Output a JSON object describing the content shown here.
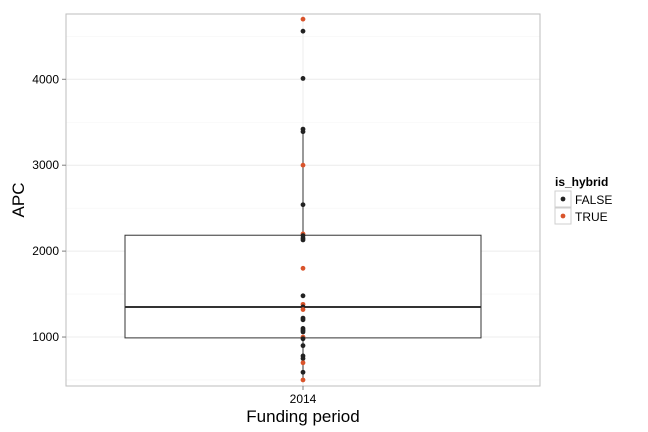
{
  "chart_data": {
    "type": "boxplot",
    "title": "",
    "xlabel": "Funding period",
    "ylabel": "APC",
    "categories": [
      "2014"
    ],
    "ylim": [
      430,
      4760
    ],
    "yticks": [
      1000,
      2000,
      3000,
      4000
    ],
    "grid": true,
    "legend": {
      "title": "is_hybrid",
      "placement": "right",
      "entries": [
        {
          "label": "FALSE",
          "color": "#222222"
        },
        {
          "label": "TRUE",
          "color": "#d9542b"
        }
      ]
    },
    "box": {
      "category": "2014",
      "q1": 990,
      "median": 1350,
      "q3": 2185,
      "whisker_low": 500,
      "whisker_high": 3420
    },
    "points": [
      {
        "y": 4700,
        "is_hybrid": "TRUE"
      },
      {
        "y": 4560,
        "is_hybrid": "FALSE"
      },
      {
        "y": 4010,
        "is_hybrid": "FALSE"
      },
      {
        "y": 3420,
        "is_hybrid": "FALSE"
      },
      {
        "y": 3390,
        "is_hybrid": "FALSE"
      },
      {
        "y": 3000,
        "is_hybrid": "TRUE"
      },
      {
        "y": 2540,
        "is_hybrid": "FALSE"
      },
      {
        "y": 2200,
        "is_hybrid": "TRUE"
      },
      {
        "y": 2180,
        "is_hybrid": "FALSE"
      },
      {
        "y": 2150,
        "is_hybrid": "FALSE"
      },
      {
        "y": 2130,
        "is_hybrid": "FALSE"
      },
      {
        "y": 1800,
        "is_hybrid": "TRUE"
      },
      {
        "y": 1480,
        "is_hybrid": "FALSE"
      },
      {
        "y": 1380,
        "is_hybrid": "TRUE"
      },
      {
        "y": 1350,
        "is_hybrid": "FALSE"
      },
      {
        "y": 1320,
        "is_hybrid": "TRUE"
      },
      {
        "y": 1220,
        "is_hybrid": "FALSE"
      },
      {
        "y": 1200,
        "is_hybrid": "FALSE"
      },
      {
        "y": 1100,
        "is_hybrid": "FALSE"
      },
      {
        "y": 1080,
        "is_hybrid": "FALSE"
      },
      {
        "y": 1060,
        "is_hybrid": "FALSE"
      },
      {
        "y": 1000,
        "is_hybrid": "TRUE"
      },
      {
        "y": 980,
        "is_hybrid": "FALSE"
      },
      {
        "y": 900,
        "is_hybrid": "FALSE"
      },
      {
        "y": 780,
        "is_hybrid": "FALSE"
      },
      {
        "y": 750,
        "is_hybrid": "FALSE"
      },
      {
        "y": 700,
        "is_hybrid": "TRUE"
      },
      {
        "y": 590,
        "is_hybrid": "FALSE"
      },
      {
        "y": 500,
        "is_hybrid": "TRUE"
      }
    ]
  }
}
